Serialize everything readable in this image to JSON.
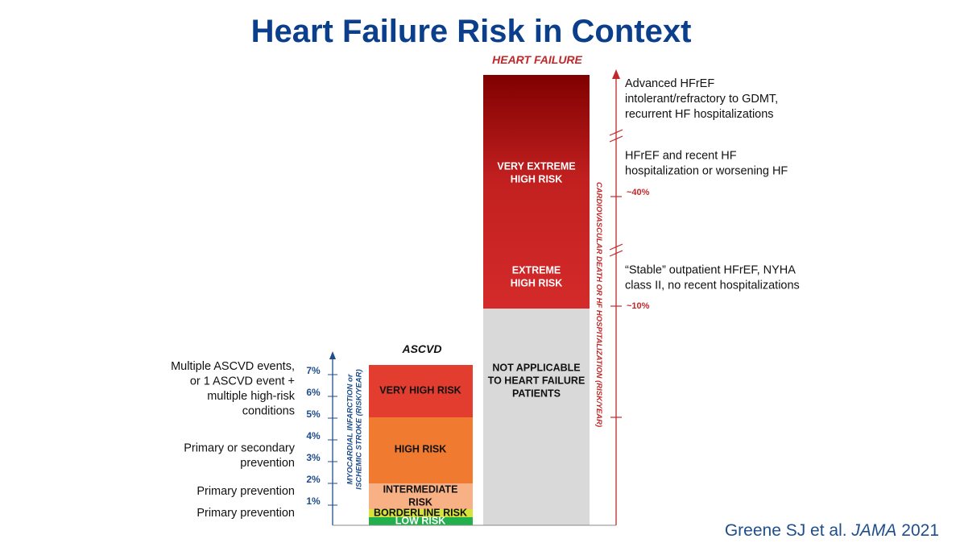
{
  "title": "Heart Failure Risk in Context",
  "heart_failure": {
    "heading": "HEART FAILURE",
    "segments": [
      {
        "label": [
          "VERY EXTREME",
          "HIGH RISK"
        ]
      },
      {
        "label": [
          "EXTREME",
          "HIGH RISK"
        ]
      },
      {
        "label": [
          "NOT APPLICABLE",
          "TO HEART FAILURE",
          "PATIENTS"
        ]
      }
    ],
    "axis_label": "CARDIOVASCULAR DEATH OR HF HOSPITALIZATION (RISK/YEAR)",
    "axis_ticks": [
      "~40%",
      "~10%"
    ],
    "notes": [
      [
        "Advanced HFrEF",
        "intolerant/refractory to GDMT,",
        "recurrent HF hospitalizations"
      ],
      [
        "HFrEF and recent HF",
        "hospitalization or worsening HF"
      ],
      [
        "“Stable” outpatient HFrEF, NYHA",
        "class II, no recent hospitalizations"
      ]
    ]
  },
  "ascvd": {
    "heading": "ASCVD",
    "segments": [
      {
        "label": [
          "VERY HIGH RISK"
        ]
      },
      {
        "label": [
          "HIGH RISK"
        ]
      },
      {
        "label": [
          "INTERMEDIATE",
          "RISK"
        ]
      },
      {
        "label": [
          "BORDERLINE RISK"
        ]
      },
      {
        "label": [
          "LOW RISK"
        ]
      }
    ],
    "axis_label": [
      "MYOCARDIAL INFARCTION or",
      "ISCHEMIC STROKE (RISK/YEAR)"
    ],
    "axis_ticks": [
      "1%",
      "2%",
      "3%",
      "4%",
      "5%",
      "6%",
      "7%"
    ],
    "notes": [
      [
        "Multiple ASCVD events,",
        "or 1 ASCVD event +",
        "multiple high-risk",
        "conditions"
      ],
      [
        "Primary or secondary",
        "prevention"
      ],
      [
        "Primary prevention"
      ],
      [
        "Primary prevention"
      ]
    ]
  },
  "citation": {
    "authors": "Greene SJ et al.",
    "journal": "JAMA",
    "year": "2021"
  }
}
